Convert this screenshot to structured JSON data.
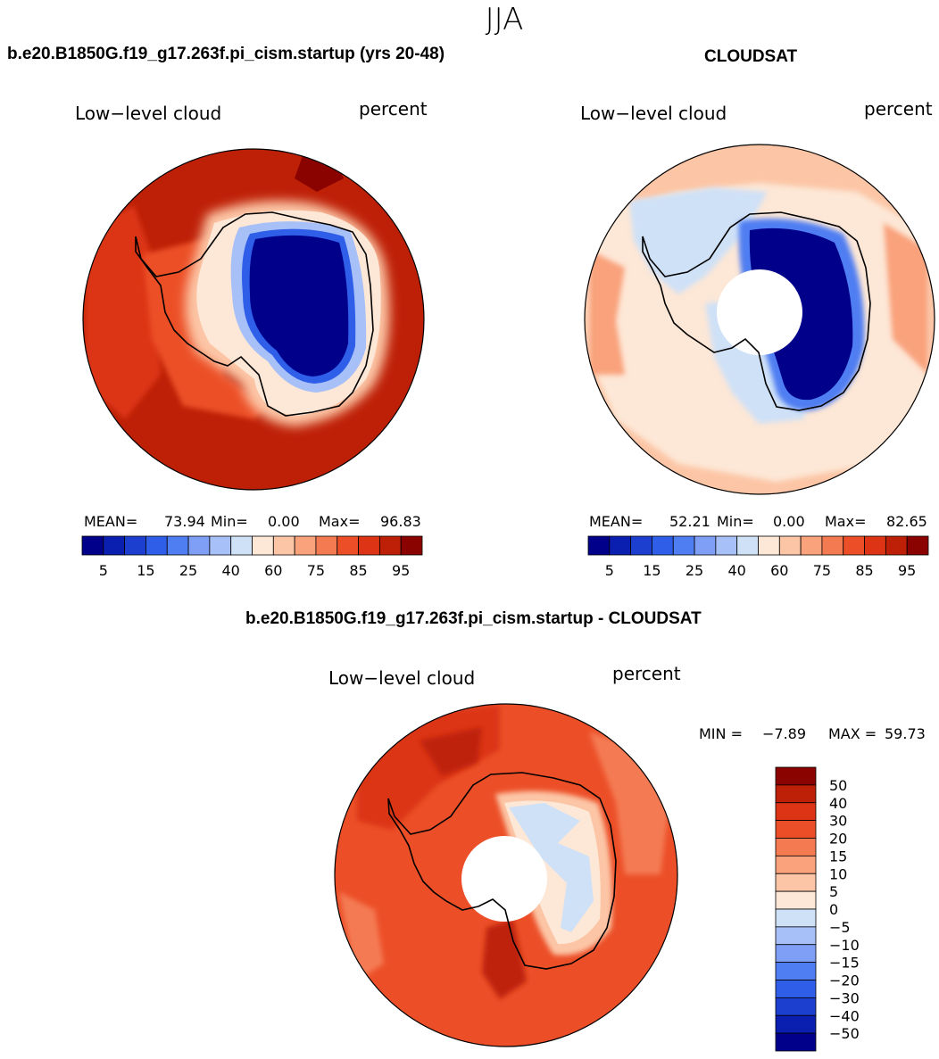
{
  "season": "JJA",
  "variable": "Low−level cloud",
  "units": "percent",
  "panels": [
    {
      "title": "b.e20.B1850G.f19_g17.263f.pi_cism.startup (yrs 20-48)",
      "stats": {
        "mean_label": "MEAN=",
        "mean": "73.94",
        "min_label": "Min=",
        "min": "0.00",
        "max_label": "Max=",
        "max": "96.83"
      }
    },
    {
      "title": "CLOUDSAT",
      "stats": {
        "mean_label": "MEAN=",
        "mean": "52.21",
        "min_label": "Min=",
        "min": "0.00",
        "max_label": "Max=",
        "max": "82.65"
      }
    },
    {
      "title": "b.e20.B1850G.f19_g17.263f.pi_cism.startup - CLOUDSAT",
      "stats": {
        "min_label": "MIN =",
        "min": "−7.89",
        "max_label": "MAX =",
        "max": "59.73"
      }
    }
  ],
  "chart_data": [
    {
      "type": "heatmap",
      "projection": "south polar stereographic",
      "title": "b.e20.B1850G.f19_g17.263f.pi_cism.startup (yrs 20-48)",
      "field": "Low−level cloud",
      "units": "percent",
      "stats": {
        "mean": 73.94,
        "min": 0.0,
        "max": 96.83
      },
      "colorbar": {
        "orientation": "horizontal",
        "levels": [
          5,
          10,
          15,
          20,
          25,
          30,
          40,
          50,
          60,
          65,
          75,
          80,
          85,
          90,
          95
        ],
        "tick_labels": [
          "5",
          "15",
          "25",
          "40",
          "60",
          "75",
          "85",
          "95"
        ],
        "colors": [
          "#00008b",
          "#0a1fb0",
          "#1d3fcf",
          "#2f5fe8",
          "#4f7ef2",
          "#7f9ef6",
          "#a8c0f8",
          "#cfe1f7",
          "#fde7d6",
          "#fcc6a6",
          "#f9a27c",
          "#f47a52",
          "#ec4f28",
          "#dc3414",
          "#be2007",
          "#8a0300"
        ]
      }
    },
    {
      "type": "heatmap",
      "projection": "south polar stereographic",
      "title": "CLOUDSAT",
      "field": "Low−level cloud",
      "units": "percent",
      "stats": {
        "mean": 52.21,
        "min": 0.0,
        "max": 82.65
      },
      "colorbar": {
        "orientation": "horizontal",
        "levels": [
          5,
          10,
          15,
          20,
          25,
          30,
          40,
          50,
          60,
          65,
          75,
          80,
          85,
          90,
          95
        ],
        "tick_labels": [
          "5",
          "15",
          "25",
          "40",
          "60",
          "75",
          "85",
          "95"
        ],
        "colors": [
          "#00008b",
          "#0a1fb0",
          "#1d3fcf",
          "#2f5fe8",
          "#4f7ef2",
          "#7f9ef6",
          "#a8c0f8",
          "#cfe1f7",
          "#fde7d6",
          "#fcc6a6",
          "#f9a27c",
          "#f47a52",
          "#ec4f28",
          "#dc3414",
          "#be2007",
          "#8a0300"
        ]
      }
    },
    {
      "type": "heatmap",
      "projection": "south polar stereographic",
      "title": "b.e20.B1850G.f19_g17.263f.pi_cism.startup - CLOUDSAT",
      "field": "Low−level cloud",
      "units": "percent",
      "stats": {
        "min": -7.89,
        "max": 59.73
      },
      "colorbar": {
        "orientation": "vertical",
        "levels": [
          -50,
          -40,
          -30,
          -20,
          -15,
          -10,
          -5,
          0,
          5,
          10,
          15,
          20,
          30,
          40,
          50
        ],
        "tick_labels": [
          "50",
          "40",
          "30",
          "20",
          "15",
          "10",
          "5",
          "0",
          "−5",
          "−10",
          "−15",
          "−20",
          "−30",
          "−40",
          "−50"
        ],
        "colors": [
          "#8a0300",
          "#be2007",
          "#dc3414",
          "#ec4f28",
          "#f47a52",
          "#f9a27c",
          "#fcc6a6",
          "#fde7d6",
          "#cfe1f7",
          "#a8c0f8",
          "#7f9ef6",
          "#4f7ef2",
          "#2f5fe8",
          "#1d3fcf",
          "#0a1fb0",
          "#00008b"
        ]
      }
    }
  ]
}
